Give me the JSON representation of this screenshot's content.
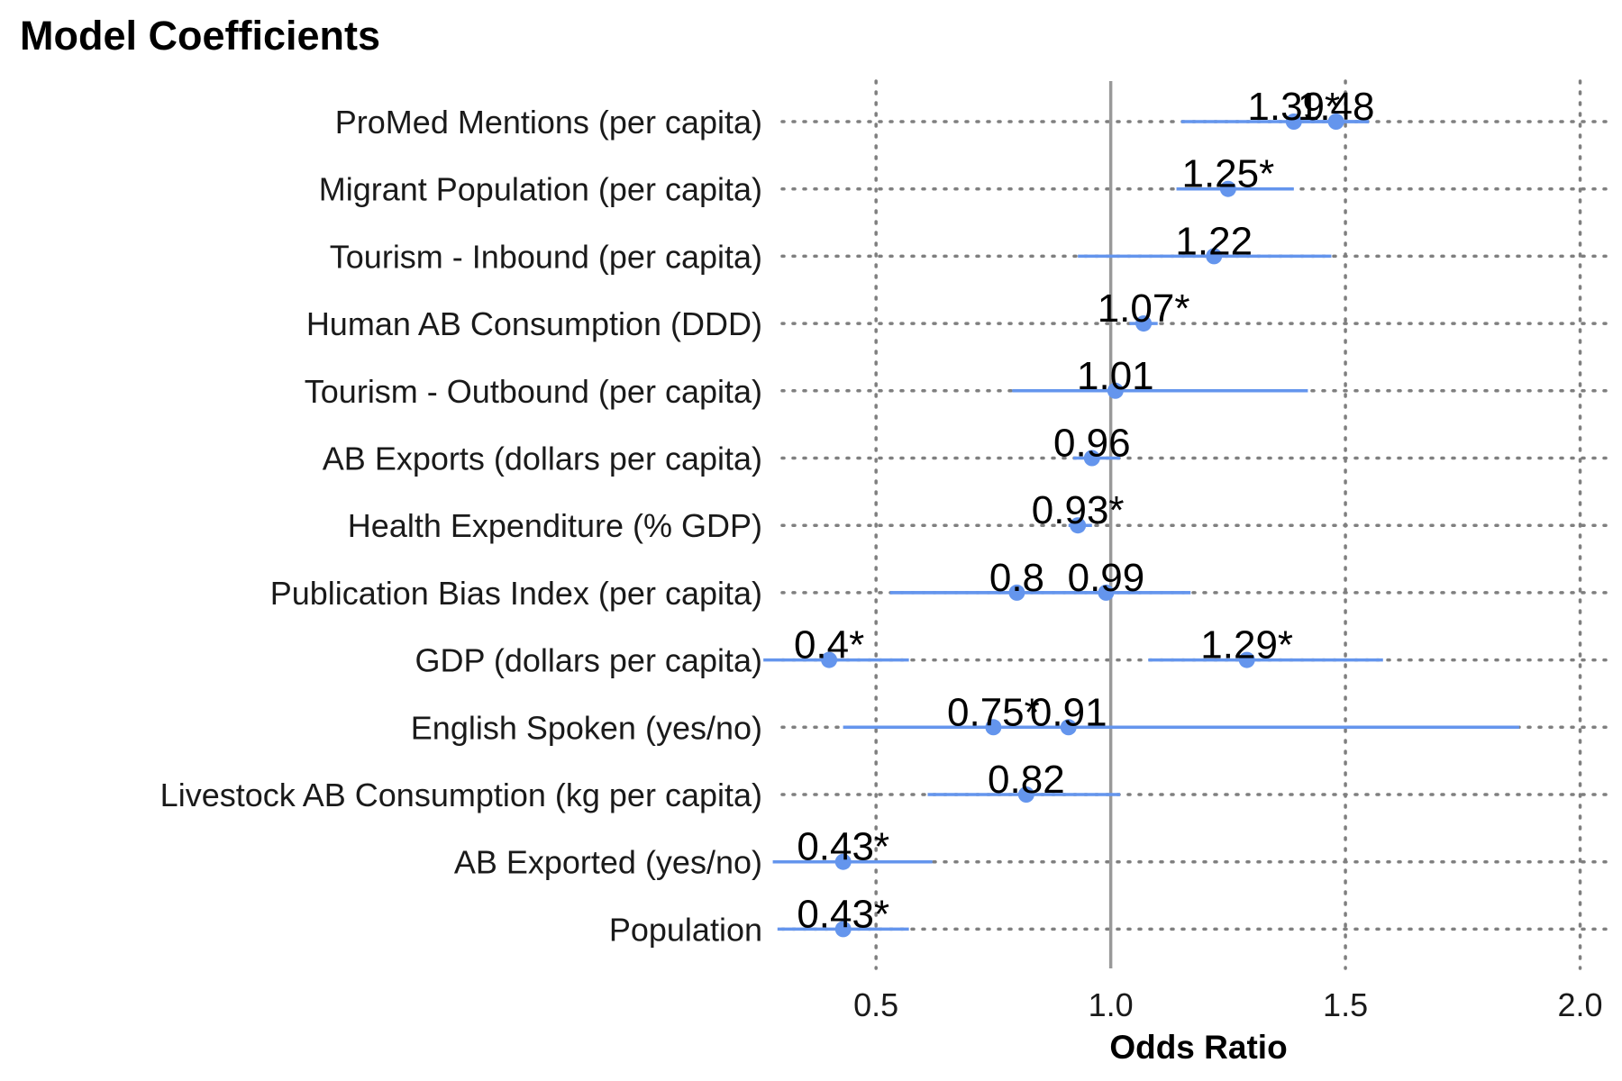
{
  "chart_data": {
    "type": "forest",
    "title": "Model Coefficients",
    "xlabel": "Odds Ratio",
    "ylabel": "",
    "xlim": [
      0.3,
      2.07
    ],
    "xticks": [
      0.5,
      1.0,
      1.5,
      2.0
    ],
    "xtick_labels": [
      "0.5",
      "1.0",
      "1.5",
      "2.0"
    ],
    "reference_line": 1.0,
    "grid": "dotted",
    "point_color": "#6495ED",
    "reference_color": "#999999",
    "categories": [
      "ProMed Mentions (per capita)",
      "Migrant Population (per capita)",
      "Tourism - Inbound (per capita)",
      "Human AB Consumption (DDD)",
      "Tourism - Outbound (per capita)",
      "AB Exports (dollars per capita)",
      "Health Expenditure (% GDP)",
      "Publication Bias Index (per capita)",
      "GDP (dollars per capita)",
      "English Spoken (yes/no)",
      "Livestock AB Consumption (kg per capita)",
      "AB Exported (yes/no)",
      "Population"
    ],
    "points": [
      {
        "category": 0,
        "value": 1.39,
        "lower": 1.15,
        "upper": 1.55,
        "label": "1.39*"
      },
      {
        "category": 0,
        "value": 1.48,
        "lower": 1.41,
        "upper": 1.55,
        "label": "1.48"
      },
      {
        "category": 1,
        "value": 1.25,
        "lower": 1.14,
        "upper": 1.39,
        "label": "1.25*"
      },
      {
        "category": 2,
        "value": 1.22,
        "lower": 0.93,
        "upper": 1.47,
        "label": "1.22"
      },
      {
        "category": 3,
        "value": 1.07,
        "lower": 1.04,
        "upper": 1.1,
        "label": "1.07*"
      },
      {
        "category": 4,
        "value": 1.01,
        "lower": 0.79,
        "upper": 1.42,
        "label": "1.01"
      },
      {
        "category": 5,
        "value": 0.96,
        "lower": 0.92,
        "upper": 1.02,
        "label": "0.96"
      },
      {
        "category": 6,
        "value": 0.93,
        "lower": 0.91,
        "upper": 0.96,
        "label": "0.93*"
      },
      {
        "category": 7,
        "value": 0.8,
        "lower": 0.53,
        "upper": 1.17,
        "label": "0.8"
      },
      {
        "category": 7,
        "value": 0.99,
        "lower": 0.53,
        "upper": 1.17,
        "label": "0.99"
      },
      {
        "category": 8,
        "value": 0.4,
        "lower": 0.26,
        "upper": 0.57,
        "label": "0.4*"
      },
      {
        "category": 8,
        "value": 1.29,
        "lower": 1.08,
        "upper": 1.58,
        "label": "1.29*"
      },
      {
        "category": 9,
        "value": 0.75,
        "lower": 0.43,
        "upper": 1.87,
        "label": "0.75*"
      },
      {
        "category": 9,
        "value": 0.91,
        "lower": 0.43,
        "upper": 1.87,
        "label": "0.91"
      },
      {
        "category": 10,
        "value": 0.82,
        "lower": 0.61,
        "upper": 1.02,
        "label": "0.82"
      },
      {
        "category": 11,
        "value": 0.43,
        "lower": 0.28,
        "upper": 0.62,
        "label": "0.43*"
      },
      {
        "category": 12,
        "value": 0.43,
        "lower": 0.29,
        "upper": 0.57,
        "label": "0.43*"
      }
    ]
  }
}
